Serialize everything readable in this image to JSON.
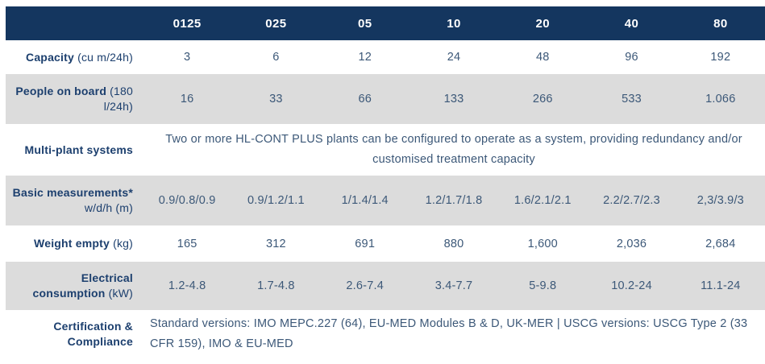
{
  "table": {
    "columns": [
      "0125",
      "025",
      "05",
      "10",
      "20",
      "40",
      "80"
    ],
    "rows": [
      {
        "id": "capacity",
        "label_bold": "Capacity",
        "label_normal": "(cu m/24h)",
        "break": false,
        "values": [
          "3",
          "6",
          "12",
          "24",
          "48",
          "96",
          "192"
        ]
      },
      {
        "id": "people-on-board",
        "label_bold": "People on board",
        "label_normal": "(180 l/24h)",
        "break": false,
        "values": [
          "16",
          "33",
          "66",
          "133",
          "266",
          "533",
          "1.066"
        ]
      },
      {
        "id": "multi-plant-systems",
        "label_bold": "Multi-plant systems",
        "label_normal": "",
        "break": false,
        "text": "Two or more HL-CONT PLUS plants can be configured to operate as a system, providing redundancy and/or customised treatment capacity",
        "align": "center"
      },
      {
        "id": "basic-measurements",
        "label_bold": "Basic measurements*",
        "label_normal": "w/d/h (m)",
        "break": true,
        "values": [
          "0.9/0.8/0.9",
          "0.9/1.2/1.1",
          "1/1.4/1.4",
          "1.2/1.7/1.8",
          "1.6/2.1/2.1",
          "2.2/2.7/2.3",
          "2,3/3.9/3"
        ]
      },
      {
        "id": "weight-empty",
        "label_bold": "Weight empty",
        "label_normal": "(kg)",
        "break": false,
        "values": [
          "165",
          "312",
          "691",
          "880",
          "1,600",
          "2,036",
          "2,684"
        ]
      },
      {
        "id": "electrical-consumption",
        "label_bold": "Electrical consumption",
        "label_normal": "(kW)",
        "break": false,
        "values": [
          "1.2-4.8",
          "1.7-4.8",
          "2.6-7.4",
          "3.4-7.7",
          "5-9.8",
          "10.2-24",
          "11.1-24"
        ]
      },
      {
        "id": "certification-compliance",
        "label_bold": "Certification & Compliance",
        "label_normal": "",
        "break": false,
        "text": "Standard versions: IMO MEPC.227 (64), EU-MED Modules B & D, UK-MER | USCG versions: USCG Type 2 (33 CFR 159), IMO & EU-MED",
        "align": "left"
      }
    ]
  },
  "colors": {
    "header_bg": "#14365F",
    "header_text": "#FFFFFF",
    "label_text": "#1C3F6E",
    "data_text": "#3C5878",
    "shaded_row_bg": "#DCDCDC"
  }
}
